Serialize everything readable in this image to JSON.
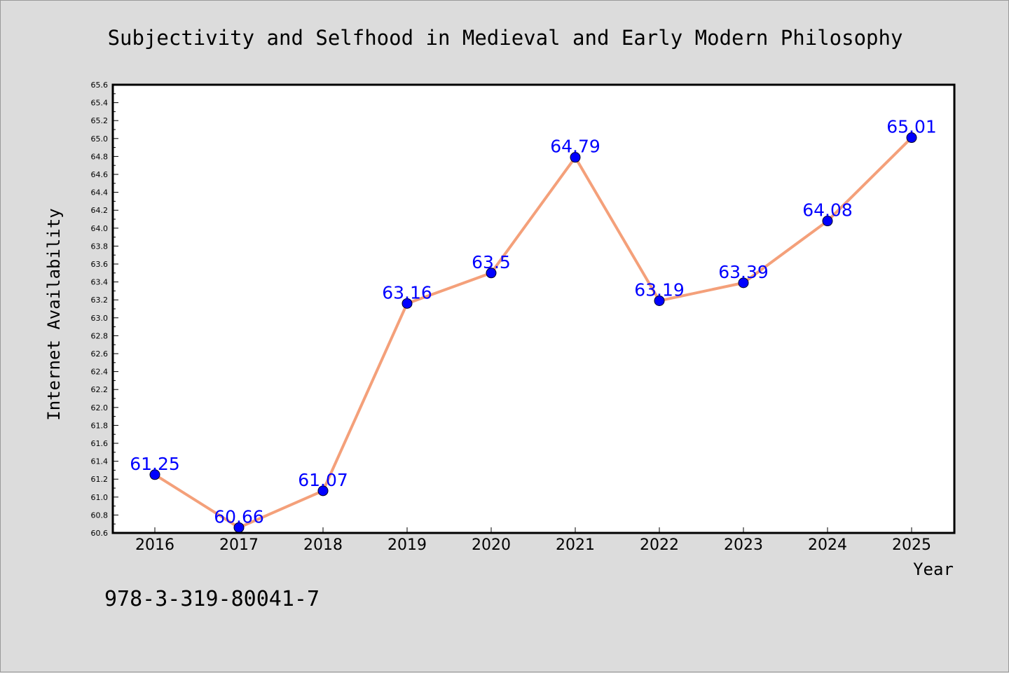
{
  "chart_data": {
    "type": "line",
    "title": "Subjectivity and Selfhood in Medieval and Early Modern Philosophy",
    "xlabel": "Year",
    "ylabel": "Internet Availability",
    "categories": [
      "2016",
      "2017",
      "2018",
      "2019",
      "2020",
      "2021",
      "2022",
      "2023",
      "2024",
      "2025"
    ],
    "series": [
      {
        "values": [
          61.25,
          60.66,
          61.07,
          63.16,
          63.5,
          64.79,
          63.19,
          63.39,
          64.08,
          65.01
        ],
        "labels": [
          "61.25",
          "60.66",
          "61.07",
          "63.16",
          "63.5",
          "64.79",
          "63.19",
          "63.39",
          "64.08",
          "65.01"
        ],
        "line_color": "#f4a07a",
        "marker_color": "#0000ff"
      }
    ],
    "ylim": [
      60.6,
      65.6
    ],
    "yticks": [
      "60.6",
      "60.8",
      "61.0",
      "61.2",
      "61.4",
      "61.6",
      "61.8",
      "62.0",
      "62.2",
      "62.4",
      "62.6",
      "62.8",
      "63.0",
      "63.2",
      "63.4",
      "63.6",
      "63.8",
      "64.0",
      "64.2",
      "64.4",
      "64.6",
      "64.8",
      "65.0",
      "65.2",
      "65.4",
      "65.6"
    ],
    "grid": false,
    "legend": "none"
  },
  "footer": {
    "isbn": "978-3-319-80041-7"
  },
  "colors": {
    "background": "#dcdcdc",
    "plot_background": "#ffffff",
    "line": "#f4a07a",
    "marker": "#0000ff",
    "label": "#0000ff"
  }
}
